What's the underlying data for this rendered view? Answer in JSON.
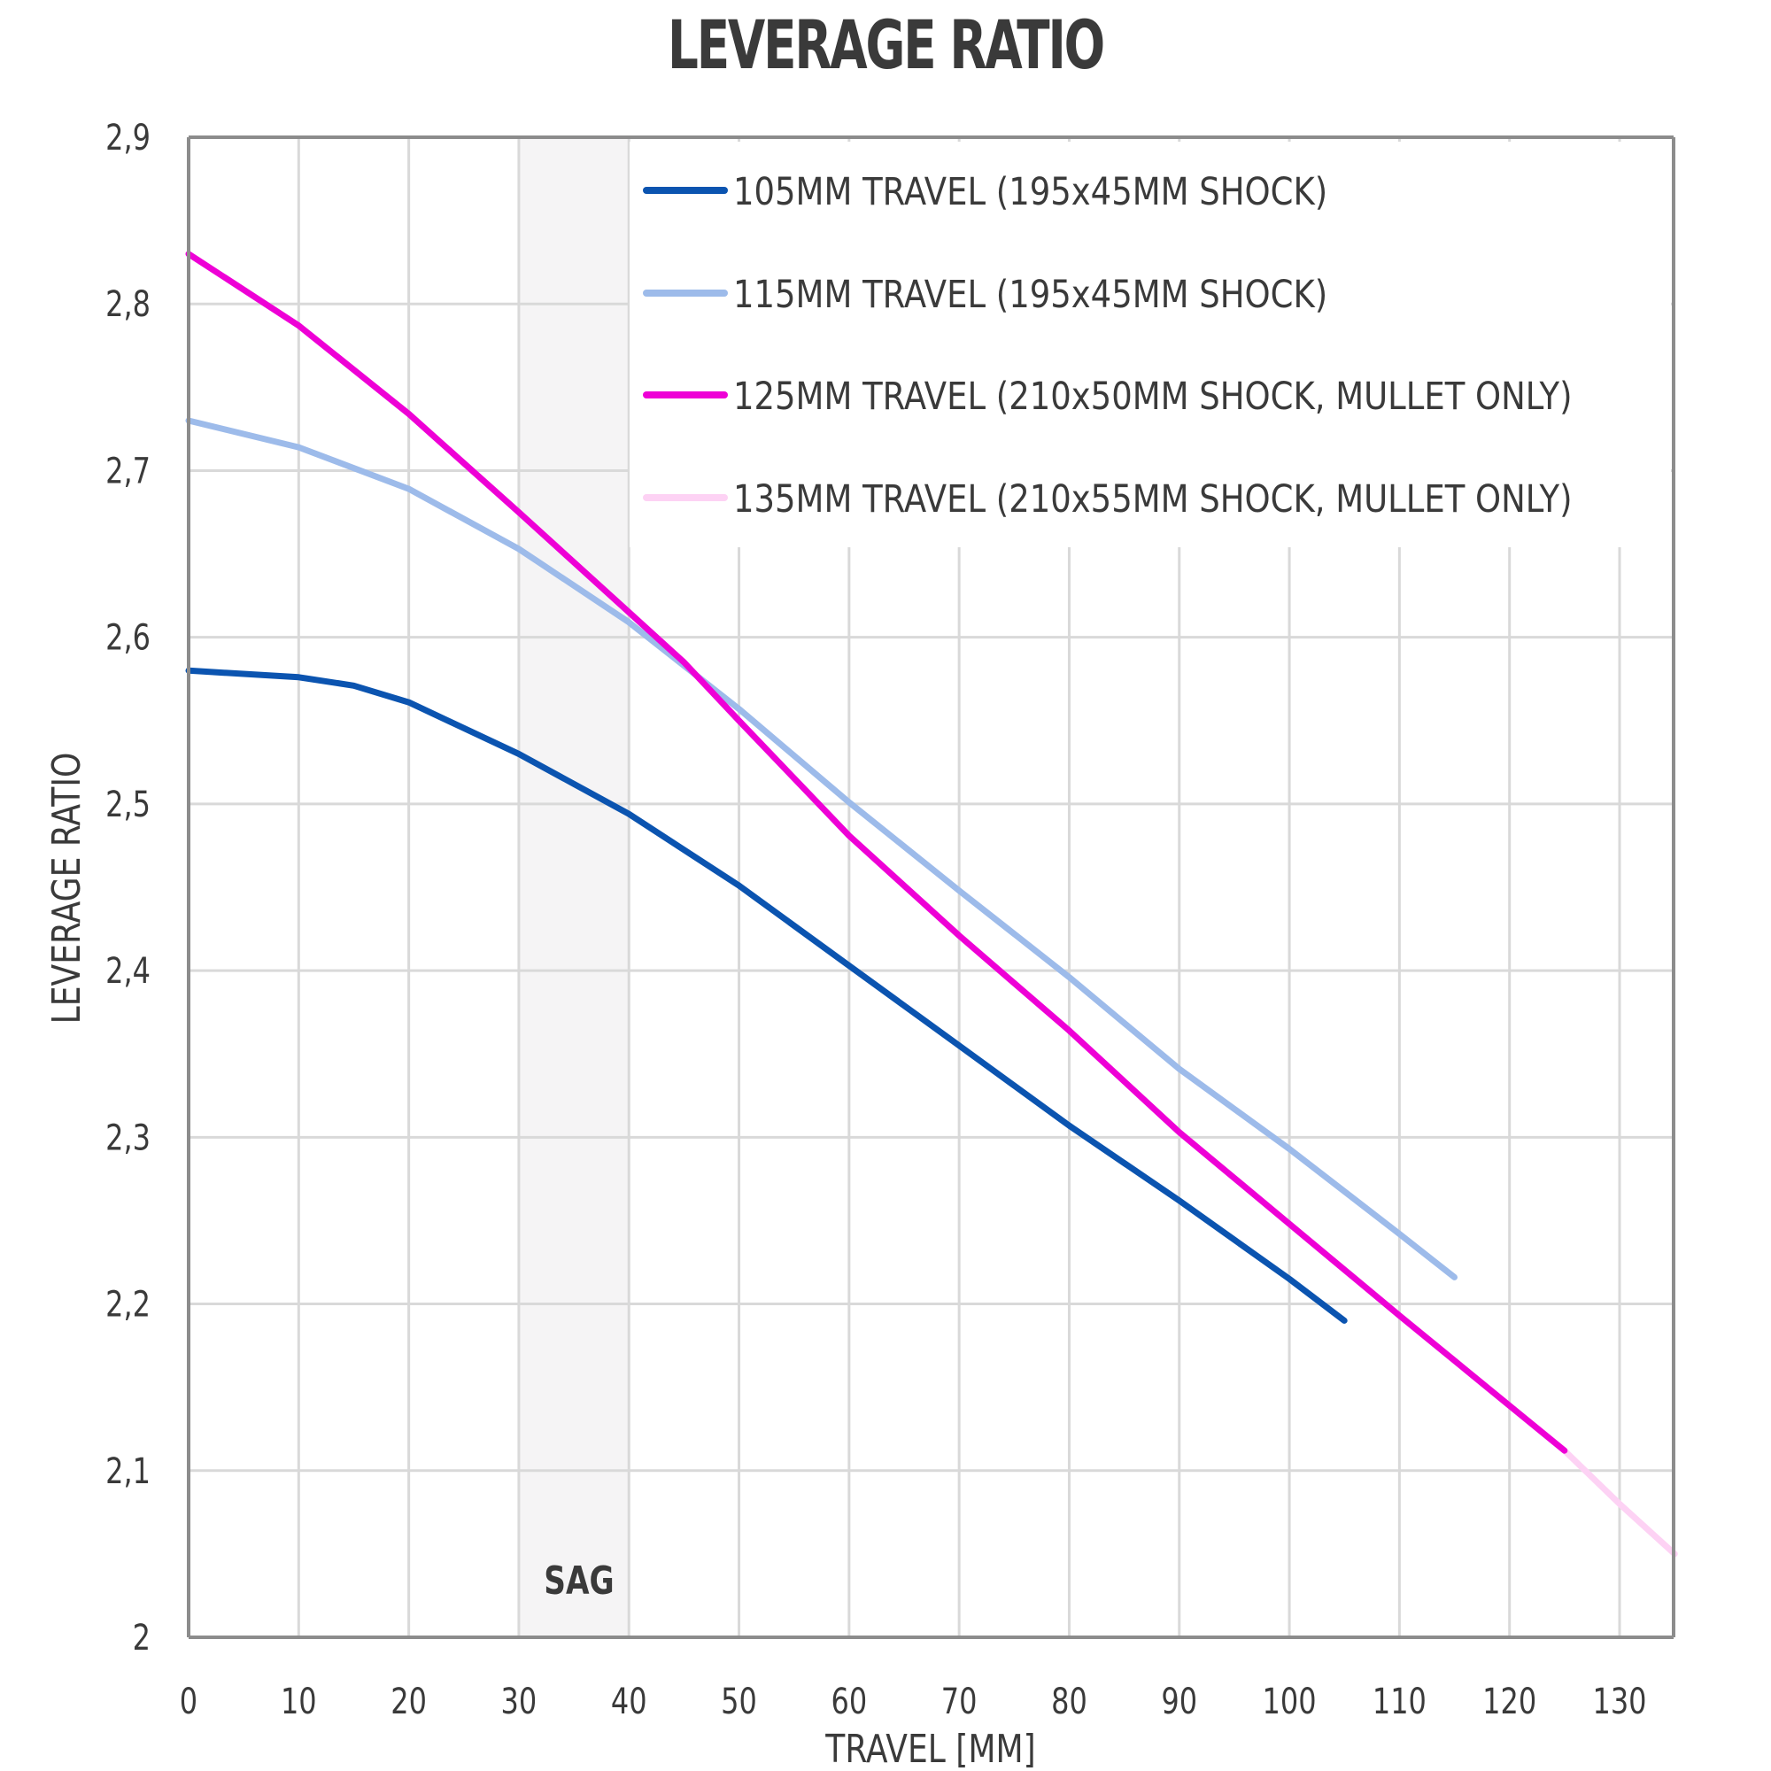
{
  "chart_data": {
    "type": "line",
    "title": "LEVERAGE RATIO",
    "xlabel": "TRAVEL [MM]",
    "ylabel": "LEVERAGE RATIO",
    "xlim": [
      0,
      135
    ],
    "ylim": [
      2.0,
      2.9
    ],
    "x_ticks": [
      "0",
      "10",
      "20",
      "30",
      "40",
      "50",
      "60",
      "70",
      "80",
      "90",
      "100",
      "110",
      "120",
      "130"
    ],
    "x_tick_values": [
      0,
      10,
      20,
      30,
      40,
      50,
      60,
      70,
      80,
      90,
      100,
      110,
      120,
      130
    ],
    "y_ticks": [
      "2",
      "2,1",
      "2,2",
      "2,3",
      "2,4",
      "2,5",
      "2,6",
      "2,7",
      "2,8",
      "2,9"
    ],
    "y_tick_values": [
      2.0,
      2.1,
      2.2,
      2.3,
      2.4,
      2.5,
      2.6,
      2.7,
      2.8,
      2.9
    ],
    "grid": true,
    "legend_position": "top-right",
    "annotations": [
      {
        "label": "SAG",
        "type": "shaded-band",
        "x_range": [
          30,
          40
        ],
        "color": "#f5f4f5"
      }
    ],
    "series": [
      {
        "name": "135MM TRAVEL (210x55MM SHOCK, MULLET ONLY)",
        "color": "#fdd2f4",
        "x": [
          0,
          10,
          20,
          30,
          40,
          45,
          50,
          60,
          70,
          80,
          90,
          100,
          110,
          120,
          125,
          130,
          135
        ],
        "y": [
          2.83,
          2.787,
          2.734,
          2.675,
          2.615,
          2.585,
          2.55,
          2.481,
          2.421,
          2.364,
          2.303,
          2.248,
          2.193,
          2.139,
          2.112,
          2.08,
          2.05
        ]
      },
      {
        "name": "105MM TRAVEL (195x45MM SHOCK)",
        "color": "#0b54b0",
        "x": [
          0,
          10,
          15,
          20,
          30,
          40,
          50,
          60,
          70,
          80,
          90,
          100,
          105
        ],
        "y": [
          2.58,
          2.576,
          2.571,
          2.561,
          2.53,
          2.494,
          2.451,
          2.403,
          2.355,
          2.307,
          2.262,
          2.215,
          2.19
        ]
      },
      {
        "name": "115MM TRAVEL (195x45MM SHOCK)",
        "color": "#9dbbea",
        "x": [
          0,
          10,
          20,
          30,
          40,
          50,
          60,
          70,
          80,
          90,
          100,
          110,
          115
        ],
        "y": [
          2.73,
          2.714,
          2.689,
          2.653,
          2.609,
          2.557,
          2.501,
          2.448,
          2.396,
          2.341,
          2.293,
          2.242,
          2.216
        ]
      },
      {
        "name": "125MM TRAVEL (210x50MM SHOCK, MULLET ONLY)",
        "color": "#ee00d6",
        "x": [
          0,
          10,
          20,
          30,
          40,
          45,
          50,
          60,
          70,
          80,
          90,
          100,
          110,
          120,
          125
        ],
        "y": [
          2.83,
          2.787,
          2.734,
          2.675,
          2.615,
          2.585,
          2.55,
          2.481,
          2.421,
          2.364,
          2.303,
          2.248,
          2.193,
          2.139,
          2.112
        ]
      }
    ],
    "legend": [
      {
        "label": "105MM TRAVEL (195x45MM SHOCK)",
        "color": "#0b54b0"
      },
      {
        "label": "115MM TRAVEL (195x45MM SHOCK)",
        "color": "#9dbbea"
      },
      {
        "label": "125MM TRAVEL (210x50MM SHOCK, MULLET ONLY)",
        "color": "#ee00d6"
      },
      {
        "label": "135MM TRAVEL (210x55MM SHOCK, MULLET ONLY)",
        "color": "#fdd2f4"
      }
    ]
  },
  "colors": {
    "text": "#3a3a3a",
    "grid": "#d9d9d9",
    "axis": "#8c8c8c",
    "sag_band": "#f5f4f5"
  }
}
